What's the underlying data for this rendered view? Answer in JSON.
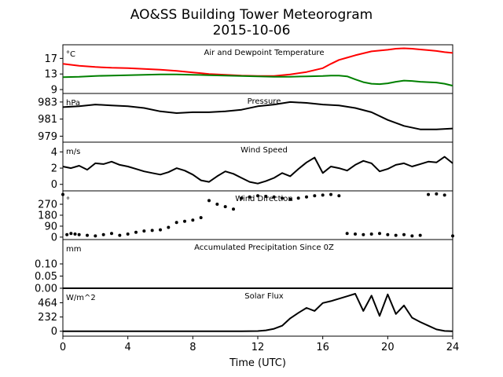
{
  "title_line1": "AO&SS Building Tower Meteorogram",
  "title_line2": "2015-10-06",
  "xlabel": "Time (UTC)",
  "x_ticks": [
    "0",
    "4",
    "8",
    "12",
    "16",
    "20",
    "24"
  ],
  "colors": {
    "air_temp": "#ff0000",
    "dewpoint": "#008000",
    "line": "#000000"
  },
  "chart_data": [
    {
      "type": "line",
      "title": "Air and Dewpoint Temperature",
      "unit": "°C",
      "yticks": [
        9,
        13,
        17
      ],
      "ylim": [
        8,
        20.5
      ],
      "xlim": [
        0,
        24
      ],
      "series": [
        {
          "x": [
            0,
            1,
            2,
            3,
            4,
            5,
            6,
            7,
            8,
            9,
            10,
            11,
            12,
            13,
            14,
            15,
            16,
            16.5,
            17,
            17.5,
            18,
            18.5,
            19,
            19.5,
            20,
            20.5,
            21,
            21.5,
            22,
            22.5,
            23,
            23.5,
            24
          ],
          "values": [
            15.6,
            15.1,
            14.8,
            14.6,
            14.5,
            14.3,
            14.1,
            13.8,
            13.4,
            13.0,
            12.8,
            12.6,
            12.5,
            12.5,
            12.9,
            13.5,
            14.5,
            15.6,
            16.6,
            17.2,
            17.8,
            18.3,
            18.8,
            19.0,
            19.2,
            19.5,
            19.6,
            19.5,
            19.3,
            19.1,
            18.9,
            18.6,
            18.4
          ],
          "color": "air_temp"
        },
        {
          "x": [
            0,
            1,
            2,
            3,
            4,
            5,
            6,
            7,
            8,
            9,
            10,
            11,
            12,
            13,
            14,
            15,
            16,
            16.5,
            17,
            17.5,
            18,
            18.5,
            19,
            19.5,
            20,
            20.5,
            21,
            21.5,
            22,
            22.5,
            23,
            23.5,
            24
          ],
          "values": [
            12.2,
            12.3,
            12.5,
            12.6,
            12.7,
            12.8,
            12.9,
            12.9,
            12.8,
            12.7,
            12.6,
            12.5,
            12.4,
            12.3,
            12.3,
            12.4,
            12.5,
            12.6,
            12.6,
            12.4,
            11.6,
            10.9,
            10.5,
            10.4,
            10.6,
            11.0,
            11.3,
            11.2,
            11.0,
            10.9,
            10.8,
            10.5,
            10.0
          ],
          "color": "dewpoint"
        }
      ]
    },
    {
      "type": "line",
      "title": "Pressure",
      "unit": "hPa",
      "yticks": [
        979,
        981,
        983
      ],
      "ylim": [
        978.3,
        984.0
      ],
      "xlim": [
        0,
        24
      ],
      "series": [
        {
          "x": [
            0,
            1,
            2,
            3,
            4,
            5,
            6,
            7,
            8,
            9,
            10,
            11,
            12,
            13,
            14,
            15,
            16,
            17,
            18,
            19,
            20,
            21,
            22,
            23,
            24
          ],
          "values": [
            982.4,
            982.5,
            982.7,
            982.6,
            982.5,
            982.3,
            981.9,
            981.7,
            981.8,
            981.8,
            981.9,
            982.1,
            982.5,
            982.7,
            983.0,
            982.9,
            982.7,
            982.6,
            982.3,
            981.8,
            980.9,
            980.2,
            979.8,
            979.8,
            979.9
          ],
          "color": "line"
        }
      ]
    },
    {
      "type": "line",
      "title": "Wind Speed",
      "unit": "m/s",
      "yticks": [
        0,
        2,
        4
      ],
      "ylim": [
        -0.8,
        5.2
      ],
      "xlim": [
        0,
        24
      ],
      "series": [
        {
          "x": [
            0,
            0.5,
            1,
            1.5,
            2,
            2.5,
            3,
            3.5,
            4,
            4.5,
            5,
            5.5,
            6,
            6.5,
            7,
            7.5,
            8,
            8.5,
            9,
            9.5,
            10,
            10.5,
            11,
            11.5,
            12,
            12.5,
            13,
            13.5,
            14,
            14.5,
            15,
            15.5,
            16,
            16.5,
            17,
            17.5,
            18,
            18.5,
            19,
            19.5,
            20,
            20.5,
            21,
            21.5,
            22,
            22.5,
            23,
            23.5,
            24
          ],
          "values": [
            2.2,
            2.0,
            2.3,
            1.8,
            2.6,
            2.5,
            2.8,
            2.4,
            2.2,
            1.9,
            1.6,
            1.4,
            1.2,
            1.5,
            2.0,
            1.7,
            1.2,
            0.5,
            0.3,
            1.0,
            1.6,
            1.3,
            0.8,
            0.3,
            0.1,
            0.4,
            0.8,
            1.4,
            1.0,
            1.9,
            2.7,
            3.3,
            1.4,
            2.2,
            2.0,
            1.7,
            2.4,
            2.9,
            2.6,
            1.6,
            1.9,
            2.4,
            2.6,
            2.2,
            2.5,
            2.8,
            2.7,
            3.4,
            2.6
          ],
          "color": "line"
        }
      ]
    },
    {
      "type": "scatter",
      "title": "Wind Direction",
      "unit": "°",
      "yticks": [
        0,
        90,
        180,
        270
      ],
      "ylim": [
        -20,
        380
      ],
      "xlim": [
        0,
        24
      ],
      "series": [
        {
          "x": [
            0,
            0.25,
            0.5,
            0.75,
            1,
            1.5,
            2,
            2.5,
            3,
            3.5,
            4,
            4.5,
            5,
            5.5,
            6,
            6.5,
            7,
            7.5,
            8,
            8.5,
            9,
            9.5,
            10,
            10.5,
            11,
            11.5,
            12,
            12.5,
            13,
            13.5,
            14,
            14.5,
            15,
            15.5,
            16,
            16.5,
            17,
            17.5,
            18,
            18.5,
            19,
            19.5,
            20,
            20.5,
            21,
            21.5,
            22,
            22.5,
            23,
            23.5,
            24
          ],
          "values": [
            350,
            20,
            30,
            25,
            20,
            15,
            10,
            20,
            30,
            15,
            25,
            40,
            50,
            55,
            60,
            80,
            120,
            130,
            140,
            160,
            300,
            270,
            250,
            230,
            320,
            330,
            340,
            335,
            330,
            320,
            310,
            320,
            330,
            340,
            345,
            350,
            340,
            30,
            25,
            20,
            25,
            30,
            20,
            15,
            20,
            10,
            15,
            350,
            355,
            345,
            10
          ],
          "color": "line"
        }
      ]
    },
    {
      "type": "line",
      "title": "Accumulated Precipitation Since 0Z",
      "unit": "mm",
      "yticks": [
        "0.00",
        "0.05",
        "0.10"
      ],
      "ylim": [
        0,
        0.2
      ],
      "xlim": [
        0,
        24
      ],
      "series": [
        {
          "x": [
            0,
            24
          ],
          "values": [
            0,
            0
          ],
          "color": "line"
        }
      ]
    },
    {
      "type": "line",
      "title": "Solar Flux",
      "unit": "W/m^2",
      "yticks": [
        0,
        232,
        464
      ],
      "ylim": [
        -80,
        700
      ],
      "xlim": [
        0,
        24
      ],
      "series": [
        {
          "x": [
            0,
            1,
            2,
            3,
            4,
            5,
            6,
            7,
            8,
            9,
            10,
            11,
            12,
            12.5,
            13,
            13.5,
            14,
            14.5,
            15,
            15.5,
            16,
            16.5,
            17,
            17.5,
            18,
            18.5,
            19,
            19.5,
            20,
            20.5,
            21,
            21.5,
            22,
            22.5,
            23,
            23.5,
            24
          ],
          "values": [
            0,
            0,
            0,
            0,
            0,
            0,
            0,
            0,
            0,
            0,
            0,
            0,
            3,
            15,
            40,
            90,
            210,
            300,
            380,
            330,
            460,
            490,
            530,
            570,
            610,
            330,
            580,
            250,
            600,
            280,
            420,
            220,
            150,
            90,
            30,
            5,
            0
          ],
          "color": "line"
        }
      ]
    }
  ]
}
